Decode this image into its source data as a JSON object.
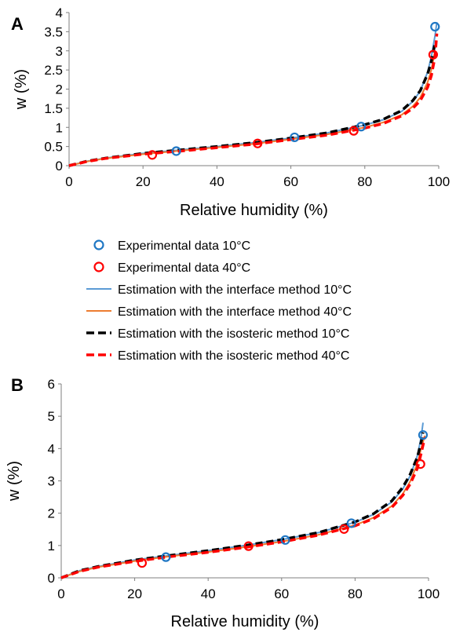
{
  "legend": [
    {
      "label": "Experimental data 10°C",
      "kind": "marker",
      "color": "#1f77c4"
    },
    {
      "label": "Experimental data 40°C",
      "kind": "marker",
      "color": "#ff0000"
    },
    {
      "label": "Estimation with the interface method 10°C",
      "kind": "solid",
      "color": "#5b9bd5"
    },
    {
      "label": "Estimation with the interface method 40°C",
      "kind": "solid",
      "color": "#ed7d31"
    },
    {
      "label": "Estimation with the isosteric method 10°C",
      "kind": "dashed",
      "color": "#000000"
    },
    {
      "label": "Estimation with the isosteric method 40°C",
      "kind": "dashed",
      "color": "#ff0000"
    }
  ],
  "chart_data": [
    {
      "type": "line",
      "panel_label": "A",
      "xlabel": "Relative humidity (%)",
      "ylabel": "w (%)",
      "xlim": [
        0,
        100
      ],
      "ylim": [
        0,
        4
      ],
      "xticks": [
        0,
        20,
        40,
        60,
        80,
        100
      ],
      "yticks": [
        0,
        0.5,
        1,
        1.5,
        2,
        2.5,
        3,
        3.5,
        4
      ],
      "yticklabels": [
        "0",
        "0.5",
        "1",
        "1.5",
        "2",
        "2.5",
        "3",
        "3.5",
        "4"
      ],
      "series": [
        {
          "name": "Experimental data 10°C",
          "style": "marker",
          "color": "#1f77c4",
          "x": [
            29,
            61,
            79,
            99
          ],
          "y": [
            0.38,
            0.74,
            1.02,
            3.63
          ]
        },
        {
          "name": "Experimental data 40°C",
          "style": "marker",
          "color": "#ff0000",
          "x": [
            22.5,
            51,
            77,
            98.5
          ],
          "y": [
            0.28,
            0.58,
            0.91,
            2.9
          ]
        },
        {
          "name": "Estimation with the interface method 10°C",
          "style": "solid",
          "color": "#5b9bd5",
          "x": [
            0,
            5,
            10,
            20,
            30,
            40,
            50,
            60,
            70,
            80,
            85,
            90,
            93,
            95,
            97,
            98,
            99,
            99.5
          ],
          "y": [
            0,
            0.12,
            0.2,
            0.32,
            0.41,
            0.5,
            0.6,
            0.72,
            0.86,
            1.06,
            1.2,
            1.42,
            1.68,
            1.95,
            2.45,
            2.85,
            3.4,
            3.75
          ]
        },
        {
          "name": "Estimation with the interface method 40°C",
          "style": "solid",
          "color": "#ed7d31",
          "x": [
            0,
            5,
            10,
            20,
            30,
            40,
            50,
            60,
            70,
            80,
            85,
            90,
            93,
            95,
            97,
            98,
            99
          ],
          "y": [
            0,
            0.11,
            0.19,
            0.3,
            0.39,
            0.48,
            0.57,
            0.69,
            0.82,
            1.0,
            1.13,
            1.33,
            1.55,
            1.78,
            2.18,
            2.5,
            3.0
          ]
        },
        {
          "name": "Estimation with the isosteric method 10°C",
          "style": "dashed",
          "color": "#000000",
          "x": [
            0,
            5,
            10,
            20,
            30,
            40,
            50,
            60,
            70,
            80,
            85,
            90,
            93,
            95,
            97,
            98,
            99
          ],
          "y": [
            0,
            0.12,
            0.2,
            0.32,
            0.41,
            0.5,
            0.6,
            0.72,
            0.86,
            1.07,
            1.21,
            1.44,
            1.7,
            1.96,
            2.4,
            2.72,
            3.2
          ]
        },
        {
          "name": "Estimation with the isosteric method 40°C",
          "style": "dashed",
          "color": "#ff0000",
          "x": [
            0,
            5,
            10,
            20,
            30,
            40,
            50,
            60,
            70,
            80,
            85,
            90,
            93,
            95,
            97,
            98,
            99,
            99.5
          ],
          "y": [
            0,
            0.11,
            0.19,
            0.3,
            0.38,
            0.47,
            0.56,
            0.68,
            0.8,
            0.98,
            1.1,
            1.3,
            1.5,
            1.7,
            2.05,
            2.35,
            2.85,
            3.45
          ]
        }
      ]
    },
    {
      "type": "line",
      "panel_label": "B",
      "xlabel": "Relative humidity (%)",
      "ylabel": "w (%)",
      "xlim": [
        0,
        100
      ],
      "ylim": [
        0,
        6
      ],
      "xticks": [
        0,
        20,
        40,
        60,
        80,
        100
      ],
      "yticks": [
        0,
        1,
        2,
        3,
        4,
        5,
        6
      ],
      "yticklabels": [
        "0",
        "1",
        "2",
        "3",
        "4",
        "5",
        "6"
      ],
      "series": [
        {
          "name": "Experimental data 10°C",
          "style": "marker",
          "color": "#1f77c4",
          "x": [
            28.5,
            61,
            79,
            98.5
          ],
          "y": [
            0.64,
            1.17,
            1.69,
            4.42
          ]
        },
        {
          "name": "Experimental data 40°C",
          "style": "marker",
          "color": "#ff0000",
          "x": [
            22,
            51,
            77,
            97.8
          ],
          "y": [
            0.46,
            0.98,
            1.51,
            3.52
          ]
        },
        {
          "name": "Estimation with the interface method 10°C",
          "style": "solid",
          "color": "#5b9bd5",
          "x": [
            0,
            5,
            10,
            20,
            30,
            40,
            50,
            60,
            70,
            80,
            85,
            90,
            93,
            95,
            97,
            98,
            98.5
          ],
          "y": [
            0,
            0.22,
            0.35,
            0.55,
            0.7,
            0.84,
            1.0,
            1.18,
            1.4,
            1.72,
            1.96,
            2.35,
            2.75,
            3.15,
            3.8,
            4.35,
            4.8
          ]
        },
        {
          "name": "Estimation with the interface method 40°C",
          "style": "solid",
          "color": "#ed7d31",
          "x": [
            0,
            5,
            10,
            20,
            30,
            40,
            50,
            60,
            70,
            80,
            85,
            90,
            93,
            95,
            97,
            98,
            99
          ],
          "y": [
            0,
            0.2,
            0.33,
            0.52,
            0.67,
            0.8,
            0.95,
            1.12,
            1.33,
            1.63,
            1.86,
            2.22,
            2.6,
            2.98,
            3.55,
            4.0,
            4.4
          ]
        },
        {
          "name": "Estimation with the isosteric method 10°C",
          "style": "dashed",
          "color": "#000000",
          "x": [
            0,
            5,
            10,
            20,
            30,
            40,
            50,
            60,
            70,
            80,
            85,
            90,
            93,
            95,
            97,
            98,
            98.5
          ],
          "y": [
            0,
            0.22,
            0.35,
            0.55,
            0.7,
            0.84,
            1.0,
            1.18,
            1.4,
            1.73,
            1.98,
            2.38,
            2.8,
            3.2,
            3.75,
            4.2,
            4.5
          ]
        },
        {
          "name": "Estimation with the isosteric method 40°C",
          "style": "dashed",
          "color": "#ff0000",
          "x": [
            0,
            5,
            10,
            20,
            30,
            40,
            50,
            60,
            70,
            80,
            85,
            90,
            93,
            95,
            97,
            98,
            99
          ],
          "y": [
            0,
            0.2,
            0.33,
            0.51,
            0.66,
            0.79,
            0.94,
            1.11,
            1.32,
            1.61,
            1.83,
            2.18,
            2.55,
            2.9,
            3.4,
            3.85,
            4.35
          ]
        }
      ]
    }
  ]
}
